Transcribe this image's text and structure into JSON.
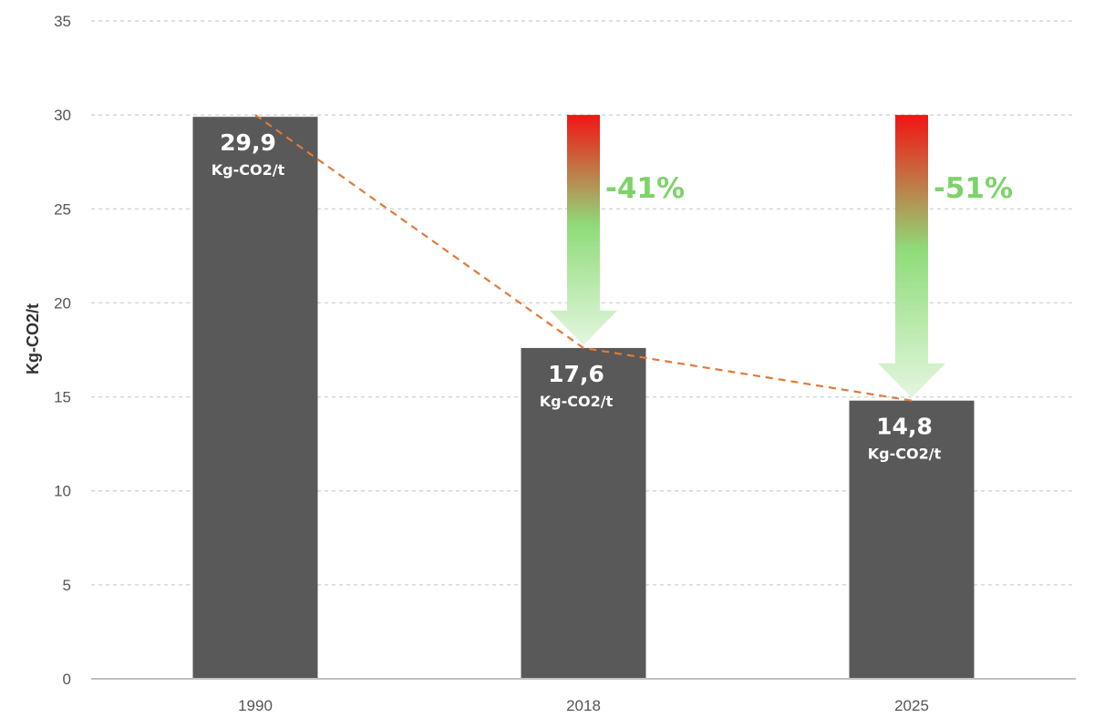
{
  "chart_data": {
    "type": "bar",
    "categories": [
      "1990",
      "2018",
      "2025"
    ],
    "values": [
      29.9,
      17.6,
      14.8
    ],
    "value_labels": [
      "29,9",
      "17,6",
      "14,8"
    ],
    "unit_label": "Kg-CO2/t",
    "ylabel": "Kg-CO2/t",
    "xlabel": "",
    "title": "",
    "ylim": [
      0,
      35
    ],
    "yticks": [
      0,
      5,
      10,
      15,
      20,
      25,
      30,
      35
    ],
    "grid": true,
    "trend_line": true,
    "reductions": [
      {
        "category": "2018",
        "label": "-41%",
        "from": 30,
        "to": 17.6
      },
      {
        "category": "2025",
        "label": "-51%",
        "from": 30,
        "to": 14.8
      }
    ],
    "colors": {
      "bar": "#595959",
      "grid": "#d6d6d6",
      "axis": "#bfbfbf",
      "trend": "#e07a3a",
      "arrow_top": "#f21414",
      "arrow_mid": "#8fdc7a",
      "arrow_bottom": "#e4f6df",
      "reduction_text": "#7dd36a"
    }
  }
}
